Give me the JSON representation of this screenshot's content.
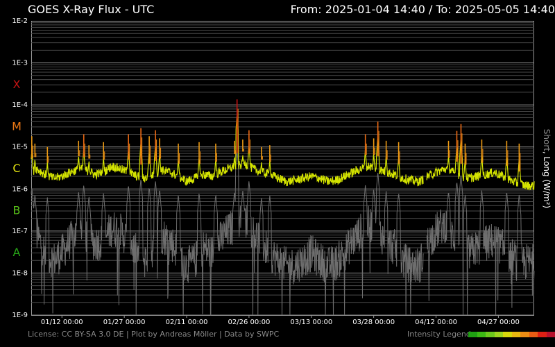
{
  "header": {
    "title": "GOES X-Ray Flux - UTC",
    "range": "From: 2025-01-04 14:40  /  To: 2025-05-05 14:40"
  },
  "footer": {
    "credits": "License: CC BY-SA 3.0 DE | Plot by Andreas Möller | Data by SWPC",
    "legend_label": "Intensity Legend",
    "legend_colors": [
      "#1fa012",
      "#3cb814",
      "#6cc81c",
      "#9ed41e",
      "#d8d80c",
      "#e8b810",
      "#ec8c14",
      "#e85c14",
      "#dc2014",
      "#b8102c",
      "#a80c4c"
    ]
  },
  "right_label": {
    "short": "Short",
    "sep": ", ",
    "long": "Long (W/m²)",
    "short_color": "#8c8c8c",
    "long_color": "#ffffff"
  },
  "chart_data": {
    "type": "line",
    "title": "GOES X-Ray Flux - UTC",
    "ylabel": "Short, Long (W/m²)",
    "yscale": "log",
    "ylim": [
      1e-09,
      0.01
    ],
    "y_ticks": [
      "1E-2",
      "1E-3",
      "1E-4",
      "1E-5",
      "1E-6",
      "1E-7",
      "1E-8",
      "1E-9"
    ],
    "xlim": [
      "2025-01-04 14:40",
      "2025-05-05 14:40"
    ],
    "x_ticks": [
      "01/12 00:00",
      "01/27 00:00",
      "02/11 00:00",
      "02/26 00:00",
      "03/13 00:00",
      "03/28 00:00",
      "04/12 00:00",
      "04/27 00:00"
    ],
    "x_tick_dates": [
      "2025-01-12",
      "2025-01-27",
      "2025-02-11",
      "2025-02-26",
      "2025-03-13",
      "2025-03-28",
      "2025-04-12",
      "2025-04-27"
    ],
    "class_labels": [
      {
        "label": "X",
        "flux": 0.0001,
        "color": "#c81414"
      },
      {
        "label": "M",
        "flux": 1e-05,
        "color": "#ec7814"
      },
      {
        "label": "C",
        "flux": 1e-06,
        "color": "#e0e010"
      },
      {
        "label": "B",
        "flux": 1e-07,
        "color": "#58c018"
      },
      {
        "label": "A",
        "flux": 1e-08,
        "color": "#28a818"
      }
    ],
    "grid": true,
    "legend": "bottom-right",
    "data_gaps": [
      [
        "2025-04-09 00:00",
        "2025-04-09 18:00"
      ]
    ],
    "series": [
      {
        "name": "Long",
        "color": "#d4e400",
        "x": [
          "2025-01-04",
          "2025-01-06",
          "2025-01-08",
          "2025-01-10",
          "2025-01-12",
          "2025-01-14",
          "2025-01-16",
          "2025-01-18",
          "2025-01-20",
          "2025-01-22",
          "2025-01-24",
          "2025-01-26",
          "2025-01-28",
          "2025-01-30",
          "2025-02-01",
          "2025-02-03",
          "2025-02-05",
          "2025-02-07",
          "2025-02-09",
          "2025-02-11",
          "2025-02-13",
          "2025-02-15",
          "2025-02-17",
          "2025-02-19",
          "2025-02-21",
          "2025-02-23",
          "2025-02-25",
          "2025-02-27",
          "2025-03-01",
          "2025-03-03",
          "2025-03-05",
          "2025-03-07",
          "2025-03-09",
          "2025-03-11",
          "2025-03-13",
          "2025-03-15",
          "2025-03-17",
          "2025-03-19",
          "2025-03-21",
          "2025-03-23",
          "2025-03-25",
          "2025-03-27",
          "2025-03-29",
          "2025-03-31",
          "2025-04-02",
          "2025-04-04",
          "2025-04-06",
          "2025-04-08",
          "2025-04-10",
          "2025-04-12",
          "2025-04-14",
          "2025-04-16",
          "2025-04-18",
          "2025-04-20",
          "2025-04-22",
          "2025-04-24",
          "2025-04-26",
          "2025-04-28",
          "2025-04-30",
          "2025-05-02",
          "2025-05-04"
        ],
        "y": [
          2.5e-06,
          3e-06,
          2.2e-06,
          1.8e-06,
          2e-06,
          2.5e-06,
          3e-06,
          2.8e-06,
          2.2e-06,
          2.5e-06,
          3.5e-06,
          3e-06,
          2.5e-06,
          2e-06,
          1.8e-06,
          2.2e-06,
          2.8e-06,
          2.5e-06,
          2e-06,
          1.5e-06,
          1.8e-06,
          2.2e-06,
          2e-06,
          2.5e-06,
          3e-06,
          3.5e-06,
          4e-06,
          3e-06,
          2.5e-06,
          2.2e-06,
          1.8e-06,
          1.5e-06,
          1.6e-06,
          1.8e-06,
          2e-06,
          1.8e-06,
          1.5e-06,
          1.6e-06,
          2e-06,
          2.5e-06,
          3e-06,
          3.5e-06,
          3e-06,
          2.5e-06,
          2.2e-06,
          1.8e-06,
          1.6e-06,
          1.5e-06,
          2e-06,
          2.5e-06,
          3e-06,
          2.5e-06,
          2e-06,
          1.8e-06,
          2e-06,
          2.2e-06,
          2.5e-06,
          2e-06,
          1.6e-06,
          1.3e-06,
          1.2e-06
        ]
      },
      {
        "name": "Short",
        "color": "#6e6e6e",
        "x": [
          "2025-01-04",
          "2025-01-06",
          "2025-01-08",
          "2025-01-10",
          "2025-01-12",
          "2025-01-14",
          "2025-01-16",
          "2025-01-18",
          "2025-01-20",
          "2025-01-22",
          "2025-01-24",
          "2025-01-26",
          "2025-01-28",
          "2025-01-30",
          "2025-02-01",
          "2025-02-03",
          "2025-02-05",
          "2025-02-07",
          "2025-02-09",
          "2025-02-11",
          "2025-02-13",
          "2025-02-15",
          "2025-02-17",
          "2025-02-19",
          "2025-02-21",
          "2025-02-23",
          "2025-02-25",
          "2025-02-27",
          "2025-03-01",
          "2025-03-03",
          "2025-03-05",
          "2025-03-07",
          "2025-03-09",
          "2025-03-11",
          "2025-03-13",
          "2025-03-15",
          "2025-03-17",
          "2025-03-19",
          "2025-03-21",
          "2025-03-23",
          "2025-03-25",
          "2025-03-27",
          "2025-03-29",
          "2025-03-31",
          "2025-04-02",
          "2025-04-04",
          "2025-04-06",
          "2025-04-08",
          "2025-04-10",
          "2025-04-12",
          "2025-04-14",
          "2025-04-16",
          "2025-04-18",
          "2025-04-20",
          "2025-04-22",
          "2025-04-24",
          "2025-04-26",
          "2025-04-28",
          "2025-04-30",
          "2025-05-02",
          "2025-05-04"
        ],
        "y": [
          4e-08,
          8e-08,
          3e-08,
          2e-08,
          3e-08,
          6e-08,
          1e-07,
          8e-08,
          5e-08,
          6e-08,
          1.2e-07,
          1e-07,
          6e-08,
          3e-08,
          2e-08,
          4e-08,
          8e-08,
          6e-08,
          3e-08,
          1.5e-08,
          2e-08,
          4e-08,
          3e-08,
          6e-08,
          1e-07,
          1.5e-07,
          2e-07,
          1e-07,
          5e-08,
          3e-08,
          2e-08,
          1.5e-08,
          1.5e-08,
          2e-08,
          3e-08,
          2e-08,
          1.5e-08,
          1.8e-08,
          3e-08,
          6e-08,
          1e-07,
          1.5e-07,
          1e-07,
          6e-08,
          4e-08,
          2e-08,
          1.5e-08,
          1.5e-08,
          5e-08,
          1e-07,
          1.5e-07,
          8e-08,
          4e-08,
          3e-08,
          4e-08,
          5e-08,
          6e-08,
          4e-08,
          2.5e-08,
          2e-08,
          1.8e-08
        ]
      }
    ],
    "flares": [
      {
        "time": "2025-01-04 18:00",
        "peak": 1.8e-05
      },
      {
        "time": "2025-01-05 12:00",
        "peak": 1.2e-05
      },
      {
        "time": "2025-01-08 12:00",
        "peak": 1e-05
      },
      {
        "time": "2025-01-16 00:00",
        "peak": 1.4e-05
      },
      {
        "time": "2025-01-17 06:00",
        "peak": 2e-05
      },
      {
        "time": "2025-01-18 12:00",
        "peak": 1.1e-05
      },
      {
        "time": "2025-01-22 00:00",
        "peak": 1.3e-05
      },
      {
        "time": "2025-01-28 00:00",
        "peak": 2e-05
      },
      {
        "time": "2025-01-31 00:00",
        "peak": 2.8e-05
      },
      {
        "time": "2025-02-02 00:00",
        "peak": 1.8e-05
      },
      {
        "time": "2025-02-03 12:00",
        "peak": 2.5e-05
      },
      {
        "time": "2025-02-04 12:00",
        "peak": 1.6e-05
      },
      {
        "time": "2025-02-09 00:00",
        "peak": 1.2e-05
      },
      {
        "time": "2025-02-14 00:00",
        "peak": 1.3e-05
      },
      {
        "time": "2025-02-18 00:00",
        "peak": 1.2e-05
      },
      {
        "time": "2025-02-22 12:00",
        "peak": 1.4e-05
      },
      {
        "time": "2025-02-23 03:00",
        "peak": 0.000135
      },
      {
        "time": "2025-02-24 12:00",
        "peak": 1.5e-05
      },
      {
        "time": "2025-02-26 00:00",
        "peak": 2.5e-05
      },
      {
        "time": "2025-03-01 00:00",
        "peak": 1e-05
      },
      {
        "time": "2025-03-03 00:00",
        "peak": 1.1e-05
      },
      {
        "time": "2025-03-26 00:00",
        "peak": 2e-05
      },
      {
        "time": "2025-03-28 00:00",
        "peak": 1.6e-05
      },
      {
        "time": "2025-03-29 00:00",
        "peak": 4e-05
      },
      {
        "time": "2025-03-31 00:00",
        "peak": 1.4e-05
      },
      {
        "time": "2025-04-03 00:00",
        "peak": 1.3e-05
      },
      {
        "time": "2025-04-15 00:00",
        "peak": 1.4e-05
      },
      {
        "time": "2025-04-17 00:00",
        "peak": 2.4e-05
      },
      {
        "time": "2025-04-18 00:00",
        "peak": 3.5e-05
      },
      {
        "time": "2025-04-19 00:00",
        "peak": 1.2e-05
      },
      {
        "time": "2025-04-23 00:00",
        "peak": 1.5e-05
      },
      {
        "time": "2025-04-29 00:00",
        "peak": 1.4e-05
      },
      {
        "time": "2025-05-02 00:00",
        "peak": 1.2e-05
      }
    ]
  }
}
